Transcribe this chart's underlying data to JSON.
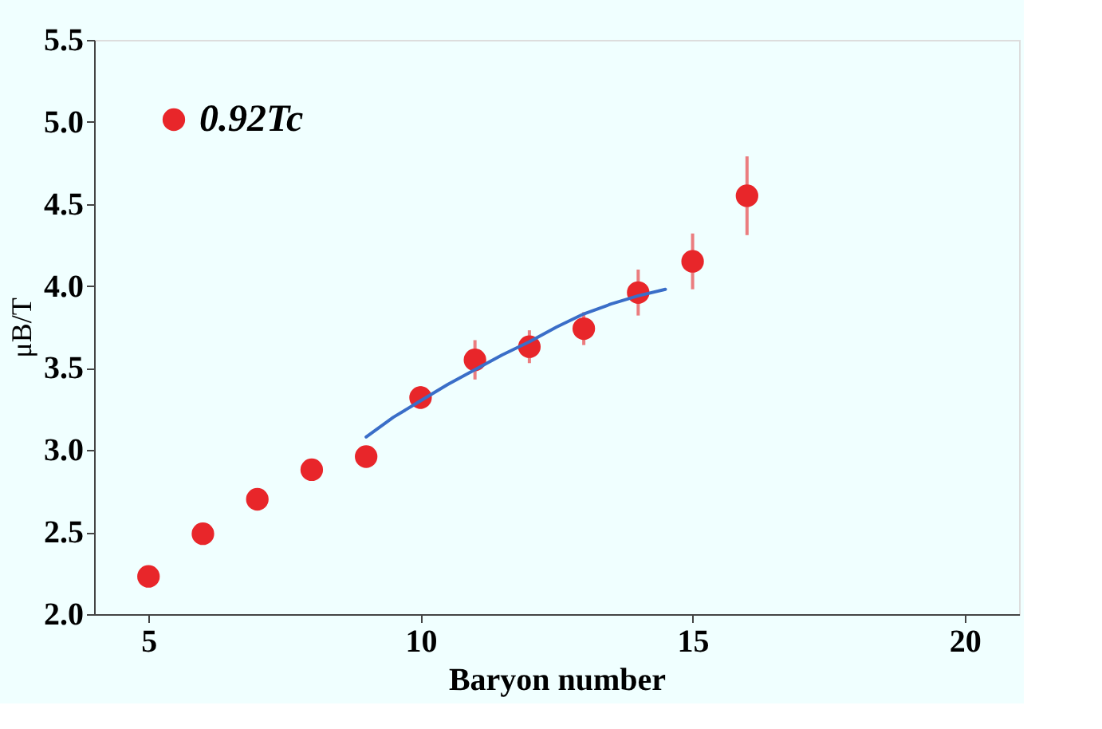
{
  "chart_data": {
    "type": "scatter",
    "xlabel": "Baryon number",
    "ylabel": "μB/T",
    "xlim": [
      4,
      21
    ],
    "xticks": [
      5,
      10,
      15,
      20
    ],
    "ylim": [
      2.0,
      5.5
    ],
    "yticks": [
      {
        "value": 2.0,
        "label": "2.0"
      },
      {
        "value": 2.5,
        "label": "2.5"
      },
      {
        "value": 3.0,
        "label": "3.0"
      },
      {
        "value": 3.5,
        "label": "3.5"
      },
      {
        "value": 4.0,
        "label": "4.0"
      },
      {
        "value": 4.5,
        "label": "4.5"
      },
      {
        "value": 5.0,
        "label": "5.0"
      },
      {
        "value": 5.5,
        "label": "5.5"
      }
    ],
    "grid": false,
    "legend": "top left",
    "marker": "circle",
    "series": [
      {
        "name": "0.92Tc",
        "color": "#e8262a",
        "x": [
          5,
          6,
          7,
          8,
          9,
          10,
          11,
          12,
          13,
          14,
          15,
          16
        ],
        "values": [
          2.23,
          2.49,
          2.7,
          2.88,
          2.96,
          3.32,
          3.55,
          3.63,
          3.74,
          3.96,
          4.15,
          4.55
        ],
        "errors": [
          0.04,
          0.05,
          0.04,
          0.04,
          0.05,
          0.07,
          0.12,
          0.1,
          0.1,
          0.14,
          0.17,
          0.24
        ]
      },
      {
        "type": "line",
        "color": "#3a6ec8",
        "marker": "none",
        "line_style": "solid",
        "x": [
          9,
          9.5,
          10,
          10.5,
          11,
          11.5,
          12,
          12.5,
          13,
          13.5,
          14,
          14.5
        ],
        "values": [
          3.08,
          3.2,
          3.3,
          3.4,
          3.49,
          3.58,
          3.66,
          3.75,
          3.83,
          3.89,
          3.94,
          3.98
        ]
      }
    ]
  }
}
